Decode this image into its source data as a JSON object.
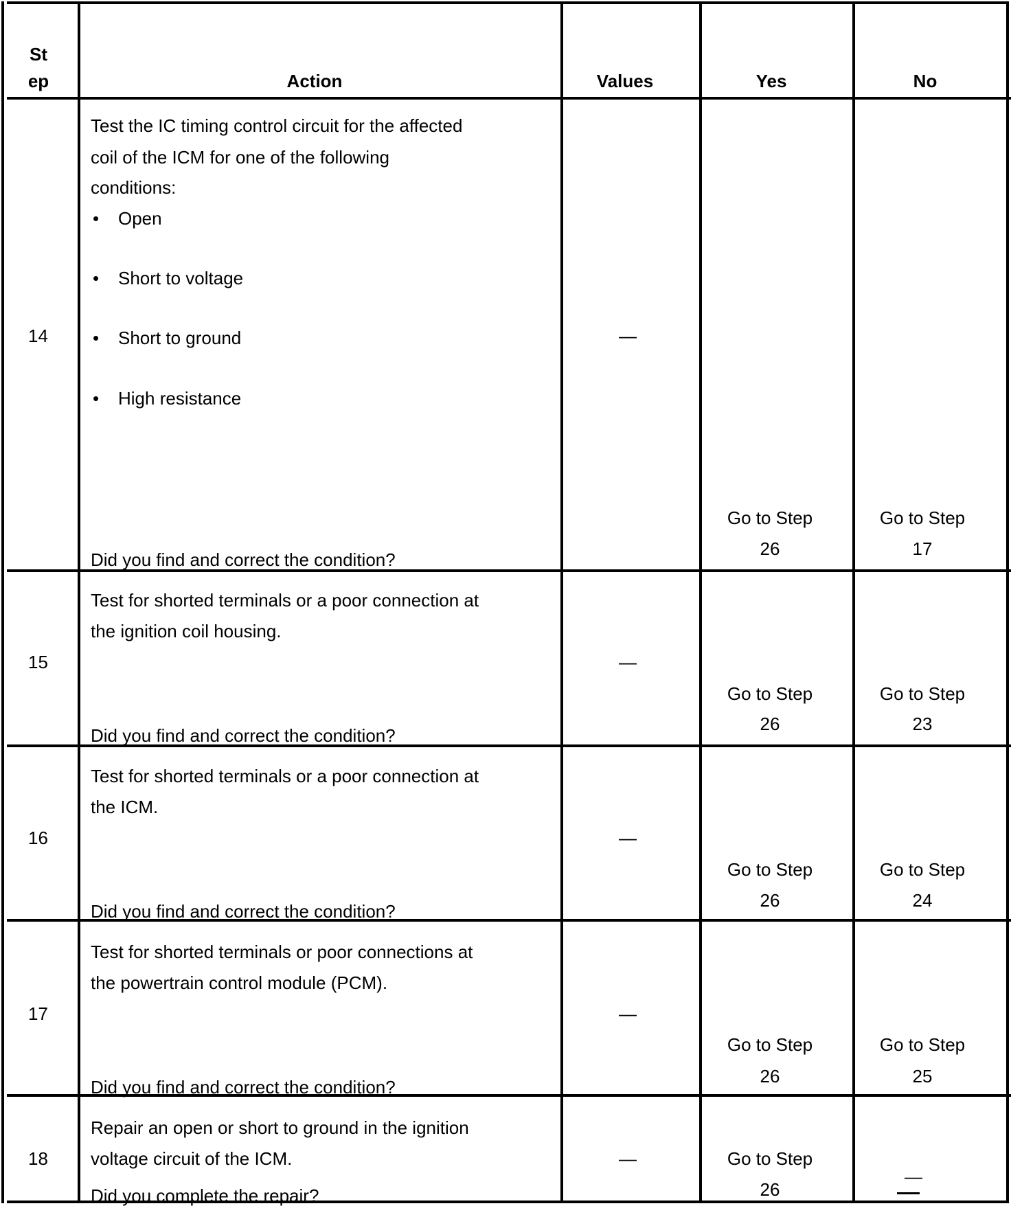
{
  "header": {
    "step": [
      "St",
      "ep"
    ],
    "action": "Action",
    "values": "Values",
    "yes": "Yes",
    "no": "No"
  },
  "rows": [
    {
      "step": "14",
      "action": [
        "Test the IC timing control circuit for the affected",
        "coil of the ICM for one of the following",
        "conditions:"
      ],
      "bullets": [
        "Open",
        "Short to voltage",
        "Short to ground",
        "High resistance"
      ],
      "question": "Did you find and correct the condition?",
      "values": "—",
      "yes": [
        "Go to Step",
        "26"
      ],
      "no": [
        "Go to Step",
        "17"
      ]
    },
    {
      "step": "15",
      "action": [
        "Test for shorted terminals or a poor connection at",
        "the ignition coil housing."
      ],
      "question": "Did you find and correct the condition?",
      "values": "—",
      "yes": [
        "Go to Step",
        "26"
      ],
      "no": [
        "Go to Step",
        "23"
      ]
    },
    {
      "step": "16",
      "action": [
        "Test for shorted terminals or a poor connection at",
        "the ICM."
      ],
      "question": "Did you find and correct the condition?",
      "values": "—",
      "yes": [
        "Go to Step",
        "26"
      ],
      "no": [
        "Go to Step",
        "24"
      ]
    },
    {
      "step": "17",
      "action": [
        "Test for shorted terminals or poor connections at",
        "the powertrain control module (PCM)."
      ],
      "question": "Did you find and correct the condition?",
      "values": "—",
      "yes": [
        "Go to Step",
        "26"
      ],
      "no": [
        "Go to Step",
        "25"
      ]
    },
    {
      "step": "18",
      "action": [
        "Repair an open or short to ground in the ignition",
        "voltage circuit of the ICM."
      ],
      "question": "Did you complete the repair?",
      "values": "—",
      "yes": [
        "Go to Step",
        "26"
      ],
      "no": "—"
    }
  ]
}
